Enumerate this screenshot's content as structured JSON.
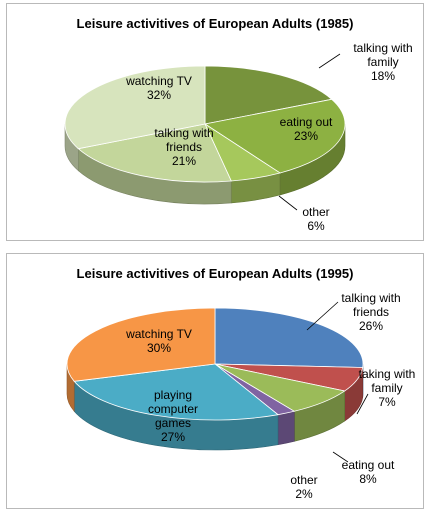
{
  "chart_data": [
    {
      "type": "pie",
      "title": "Leisure activitives of European Adults (1985)",
      "slices": [
        {
          "name": "talking with family",
          "label_lines": [
            "talking with",
            "family"
          ],
          "value": 18,
          "value_label": "18%",
          "color": "#77933C"
        },
        {
          "name": "eating out",
          "label_lines": [
            "eating out"
          ],
          "value": 23,
          "value_label": "23%",
          "color": "#8DB142"
        },
        {
          "name": "other",
          "label_lines": [
            "other"
          ],
          "value": 6,
          "value_label": "6%",
          "color": "#A6C85C"
        },
        {
          "name": "talking with friends",
          "label_lines": [
            "talking with",
            "friends"
          ],
          "value": 21,
          "value_label": "21%",
          "color": "#C3D69B"
        },
        {
          "name": "watching TV",
          "label_lines": [
            "watching TV"
          ],
          "value": 32,
          "value_label": "32%",
          "color": "#D7E4BD"
        }
      ]
    },
    {
      "type": "pie",
      "title": "Leisure activitives of European Adults (1995)",
      "slices": [
        {
          "name": "talking with friends",
          "label_lines": [
            "talking with",
            "friends"
          ],
          "value": 26,
          "value_label": "26%",
          "color": "#4F81BD"
        },
        {
          "name": "taking with family",
          "label_lines": [
            "taking with",
            "family"
          ],
          "value": 7,
          "value_label": "7%",
          "color": "#C0504D"
        },
        {
          "name": "eating out",
          "label_lines": [
            "eating out"
          ],
          "value": 8,
          "value_label": "8%",
          "color": "#9BBB59"
        },
        {
          "name": "other",
          "label_lines": [
            "other"
          ],
          "value": 2,
          "value_label": "2%",
          "color": "#8064A2"
        },
        {
          "name": "playing computer games",
          "label_lines": [
            "playing",
            "computer",
            "games"
          ],
          "value": 27,
          "value_label": "27%",
          "color": "#4BACC6"
        },
        {
          "name": "watching TV",
          "label_lines": [
            "watching TV"
          ],
          "value": 30,
          "value_label": "30%",
          "color": "#F79646"
        }
      ]
    }
  ]
}
